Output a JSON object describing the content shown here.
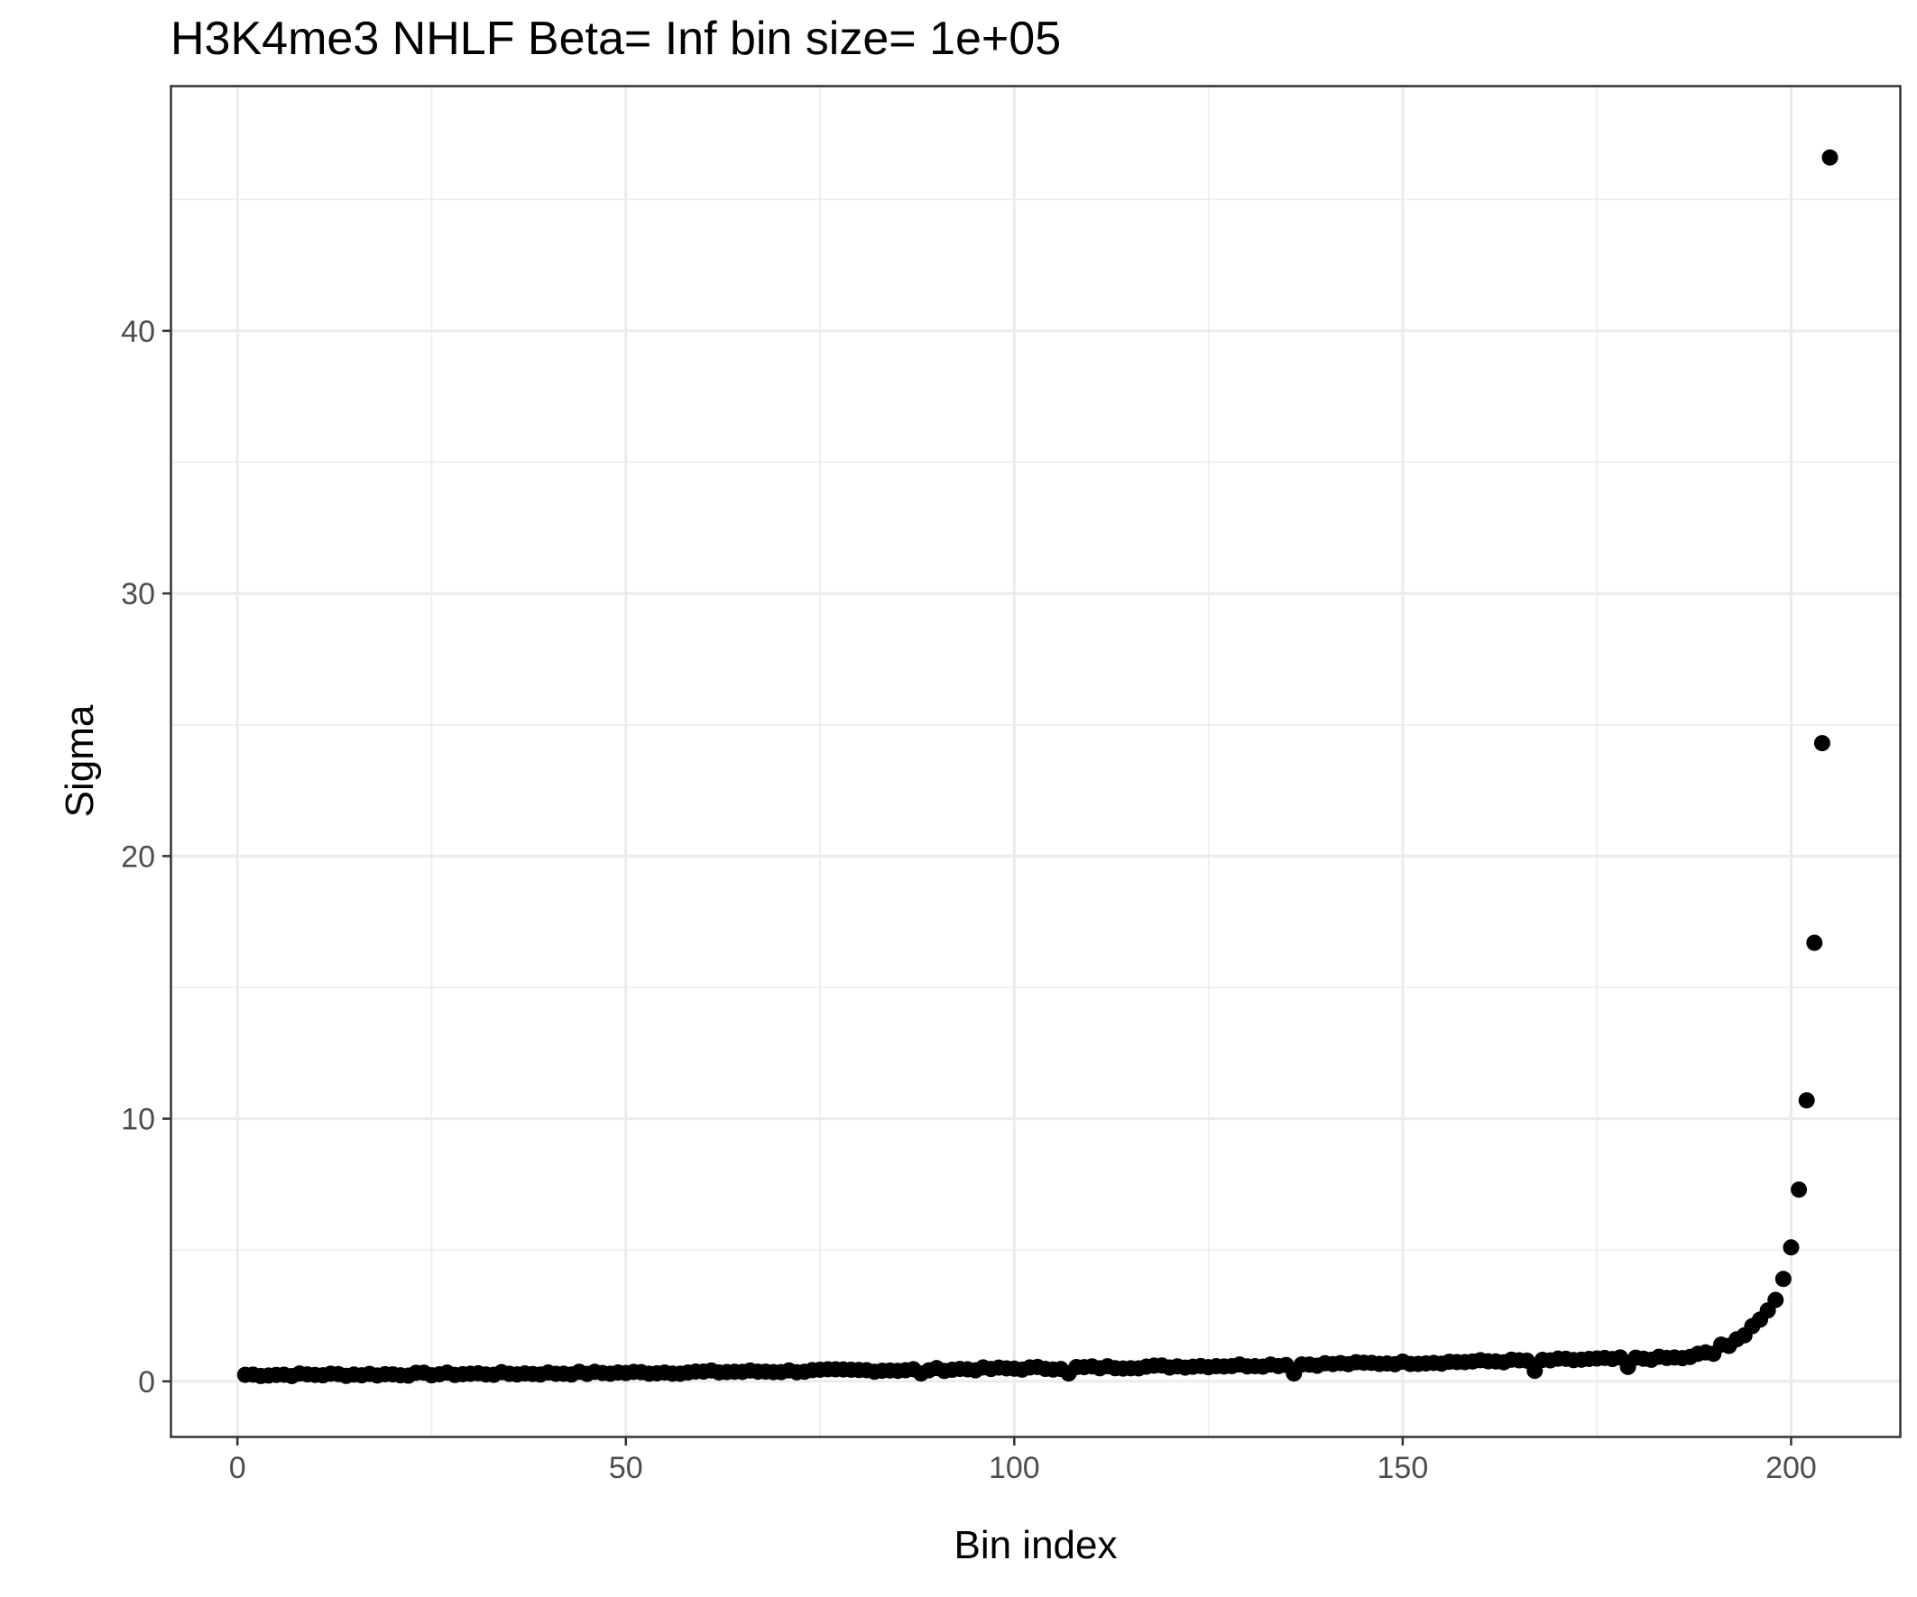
{
  "chart_data": {
    "type": "scatter",
    "title": "H3K4me3 NHLF  Beta=  Inf  bin size=  1e+05",
    "xlabel": "Bin index",
    "ylabel": "Sigma",
    "xlim": [
      -8.5,
      214
    ],
    "ylim": [
      -2.1,
      49.3
    ],
    "x_ticks": [
      0,
      50,
      100,
      150,
      200
    ],
    "x_tick_labels": [
      "0",
      "50",
      "100",
      "150",
      "200"
    ],
    "x_minor_ticks": [
      25,
      75,
      125,
      175
    ],
    "y_ticks": [
      0,
      10,
      20,
      30,
      40
    ],
    "y_tick_labels": [
      "0",
      "10",
      "20",
      "30",
      "40"
    ],
    "y_minor_ticks": [
      5,
      15,
      25,
      35,
      45
    ],
    "grid": true,
    "theme": "bw",
    "point_color": "#000000",
    "tail_points": [
      {
        "x": 188,
        "y": 1.05
      },
      {
        "x": 189,
        "y": 1.1
      },
      {
        "x": 190,
        "y": 1.05
      },
      {
        "x": 191,
        "y": 1.4
      },
      {
        "x": 192,
        "y": 1.35
      },
      {
        "x": 193,
        "y": 1.6
      },
      {
        "x": 194,
        "y": 1.75
      },
      {
        "x": 195,
        "y": 2.1
      },
      {
        "x": 196,
        "y": 2.35
      },
      {
        "x": 197,
        "y": 2.7
      },
      {
        "x": 198,
        "y": 3.1
      },
      {
        "x": 199,
        "y": 3.9
      },
      {
        "x": 200,
        "y": 5.1
      },
      {
        "x": 201,
        "y": 7.3
      },
      {
        "x": 202,
        "y": 10.7
      },
      {
        "x": 203,
        "y": 16.7
      },
      {
        "x": 204,
        "y": 24.3
      },
      {
        "x": 205,
        "y": 46.6
      }
    ],
    "baseline": {
      "x_range": [
        1,
        187
      ],
      "start_y": 0.25,
      "end_y": 0.9,
      "noise": 0.12,
      "dips": [
        {
          "x": 88,
          "y": 0.3
        },
        {
          "x": 107,
          "y": 0.3
        },
        {
          "x": 136,
          "y": 0.3
        },
        {
          "x": 167,
          "y": 0.4
        },
        {
          "x": 179,
          "y": 0.55
        }
      ]
    }
  }
}
